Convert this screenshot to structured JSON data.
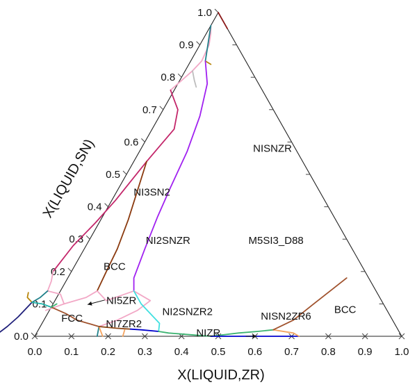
{
  "chart_data": {
    "type": "ternary_phase_diagram",
    "x_axis_title": "X(LIQUID,ZR)",
    "y_axis_title": "X(LIQUID,SN)",
    "x_ticks": [
      "0.0",
      "0.1",
      "0.2",
      "0.3",
      "0.4",
      "0.5",
      "0.6",
      "0.7",
      "0.8",
      "0.9",
      "1.0"
    ],
    "y_ticks": [
      "0.0",
      "0.1",
      "0.2",
      "0.3",
      "0.4",
      "0.5",
      "0.6",
      "0.7",
      "0.8",
      "0.9",
      "1.0"
    ],
    "phase_labels": [
      {
        "text": "NISNZR",
        "zr": 0.31,
        "sn": 0.57
      },
      {
        "text": "NI3SN2",
        "zr": 0.052,
        "sn": 0.435
      },
      {
        "text": "NI2SNZR",
        "zr": 0.16,
        "sn": 0.285
      },
      {
        "text": "M5SI3_D88",
        "zr": 0.44,
        "sn": 0.285
      },
      {
        "text": "BCC",
        "zr": 0.085,
        "sn": 0.205
      },
      {
        "text": "NI5ZR",
        "zr": 0.145,
        "sn": 0.1
      },
      {
        "text": "FCC",
        "zr": 0.05,
        "sn": 0.045
      },
      {
        "text": "NI7ZR2",
        "zr": 0.18,
        "sn": 0.028
      },
      {
        "text": "NI2SNZR2",
        "zr": 0.315,
        "sn": 0.065
      },
      {
        "text": "NIZR",
        "zr": 0.44,
        "sn": 0.0
      },
      {
        "text": "NISN2ZR6",
        "zr": 0.59,
        "sn": 0.052
      },
      {
        "text": "BCC",
        "zr": 0.78,
        "sn": 0.072
      }
    ],
    "boundaries": [
      {
        "color": "#8b1a1a",
        "points": [
          [
            0.05,
            0.95
          ],
          [
            0.0,
            1.0
          ]
        ]
      },
      {
        "color": "#f2a8c6",
        "points": [
          [
            0.0,
            0.96
          ],
          [
            0.012,
            0.935
          ],
          [
            0.025,
            0.9
          ],
          [
            0.03,
            0.85
          ],
          [
            0.02,
            0.82
          ]
        ]
      },
      {
        "color": "#20808a",
        "points": [
          [
            0.0,
            0.96
          ],
          [
            0.04,
            0.85
          ]
        ]
      },
      {
        "color": "#b8860b",
        "points": [
          [
            0.04,
            0.85
          ],
          [
            0.06,
            0.84
          ]
        ]
      },
      {
        "color": "#a020f0",
        "points": [
          [
            0.04,
            0.85
          ],
          [
            0.08,
            0.78
          ],
          [
            0.11,
            0.68
          ],
          [
            0.13,
            0.57
          ],
          [
            0.14,
            0.46
          ],
          [
            0.15,
            0.37
          ],
          [
            0.165,
            0.27
          ],
          [
            0.18,
            0.18
          ],
          [
            0.2,
            0.14
          ]
        ]
      },
      {
        "color": "#f2a8c6",
        "points": [
          [
            0.02,
            0.82
          ],
          [
            -0.01,
            0.76
          ]
        ]
      },
      {
        "color": "#bdbdbd",
        "points": [
          [
            0.02,
            0.82
          ],
          [
            0.04,
            0.79
          ],
          [
            0.055,
            0.77
          ]
        ]
      },
      {
        "color": "#c3266a",
        "points": [
          [
            -0.01,
            0.76
          ],
          [
            0.04,
            0.7
          ],
          [
            0.06,
            0.64
          ],
          [
            0.045,
            0.58
          ],
          [
            0.035,
            0.54
          ]
        ]
      },
      {
        "color": "#c3266a",
        "points": [
          [
            0.035,
            0.54
          ],
          [
            0.01,
            0.42
          ],
          [
            -0.01,
            0.35
          ],
          [
            -0.035,
            0.28
          ],
          [
            -0.05,
            0.2
          ]
        ]
      },
      {
        "color": "#8b3a0f",
        "points": [
          [
            0.035,
            0.54
          ],
          [
            0.055,
            0.45
          ],
          [
            0.075,
            0.36
          ],
          [
            0.09,
            0.27
          ],
          [
            0.095,
            0.2
          ],
          [
            0.1,
            0.14
          ]
        ]
      },
      {
        "color": "#f2a8c6",
        "points": [
          [
            0.1,
            0.14
          ],
          [
            0.08,
            0.12
          ],
          [
            0.03,
            0.1
          ],
          [
            -0.01,
            0.08
          ]
        ]
      },
      {
        "color": "#f2a8c6",
        "points": [
          [
            0.1,
            0.14
          ],
          [
            0.14,
            0.11
          ],
          [
            0.2,
            0.14
          ]
        ]
      },
      {
        "color": "#f2a8c6",
        "points": [
          [
            -0.05,
            0.2
          ],
          [
            -0.04,
            0.17
          ],
          [
            -0.035,
            0.14
          ],
          [
            0.005,
            0.13
          ],
          [
            0.03,
            0.1
          ]
        ]
      },
      {
        "color": "#20808a",
        "points": [
          [
            -0.035,
            0.14
          ],
          [
            -0.045,
            0.12
          ],
          [
            -0.06,
            0.105
          ]
        ]
      },
      {
        "color": "#b8860b",
        "points": [
          [
            -0.06,
            0.105
          ],
          [
            -0.08,
            0.12
          ],
          [
            -0.085,
            0.135
          ]
        ]
      },
      {
        "color": "#1f1f7a",
        "points": [
          [
            -0.06,
            0.105
          ],
          [
            -0.075,
            0.06
          ],
          [
            -0.09,
            0.03
          ],
          [
            -0.11,
            0.0
          ]
        ]
      },
      {
        "color": "#20b2aa",
        "points": [
          [
            -0.06,
            0.105
          ],
          [
            -0.03,
            0.1
          ],
          [
            0.0,
            0.09
          ]
        ]
      },
      {
        "color": "#a0522d",
        "points": [
          [
            0.0,
            0.09
          ],
          [
            0.05,
            0.07
          ],
          [
            0.09,
            0.05
          ],
          [
            0.16,
            0.03
          ]
        ]
      },
      {
        "color": "#3cb371",
        "points": [
          [
            0.0,
            0.09
          ],
          [
            0.01,
            0.1
          ]
        ]
      },
      {
        "color": "#f2a8c6",
        "points": [
          [
            0.16,
            0.03
          ],
          [
            0.2,
            0.05
          ],
          [
            0.24,
            0.08
          ],
          [
            0.26,
            0.11
          ],
          [
            0.2,
            0.14
          ]
        ]
      },
      {
        "color": "#40e0e0",
        "points": [
          [
            0.2,
            0.14
          ],
          [
            0.24,
            0.1
          ],
          [
            0.28,
            0.07
          ],
          [
            0.32,
            0.04
          ],
          [
            0.33,
            0.015
          ]
        ]
      },
      {
        "color": "#20808a",
        "points": [
          [
            0.16,
            0.03
          ],
          [
            0.17,
            0.0
          ]
        ]
      },
      {
        "color": "#f4a460",
        "points": [
          [
            0.16,
            0.03
          ],
          [
            0.185,
            0.0
          ]
        ]
      },
      {
        "color": "#8b4513",
        "points": [
          [
            0.16,
            0.03
          ],
          [
            0.21,
            0.025
          ],
          [
            0.25,
            0.022
          ]
        ]
      },
      {
        "color": "#f4a460",
        "points": [
          [
            0.235,
            0.02
          ],
          [
            0.24,
            0.0
          ]
        ]
      },
      {
        "color": "#0000cd",
        "points": [
          [
            0.25,
            0.022
          ],
          [
            0.28,
            0.02
          ],
          [
            0.33,
            0.015
          ]
        ]
      },
      {
        "color": "#3cb371",
        "points": [
          [
            0.33,
            0.015
          ],
          [
            0.36,
            0.01
          ],
          [
            0.42,
            0.005
          ],
          [
            0.48,
            0.0
          ]
        ]
      },
      {
        "color": "#3cb371",
        "points": [
          [
            0.48,
            0.0
          ],
          [
            0.55,
            0.01
          ],
          [
            0.6,
            0.015
          ],
          [
            0.64,
            0.02
          ]
        ]
      },
      {
        "color": "#0000cd",
        "points": [
          [
            0.48,
            0.0
          ],
          [
            0.6,
            0.0
          ],
          [
            0.72,
            0.0
          ]
        ]
      },
      {
        "color": "#f4a460",
        "points": [
          [
            0.64,
            0.02
          ],
          [
            0.7,
            0.01
          ],
          [
            0.72,
            0.0
          ]
        ]
      },
      {
        "color": "#a0522d",
        "points": [
          [
            0.64,
            0.02
          ],
          [
            0.68,
            0.05
          ],
          [
            0.71,
            0.1
          ],
          [
            0.735,
            0.14
          ],
          [
            0.76,
            0.18
          ]
        ]
      }
    ],
    "arrows": [
      {
        "from": [
          0.135,
          0.112
        ],
        "to": [
          0.095,
          0.098
        ]
      },
      {
        "from": [
          0.575,
          0.0
        ],
        "to": [
          0.605,
          0.0
        ]
      }
    ]
  }
}
